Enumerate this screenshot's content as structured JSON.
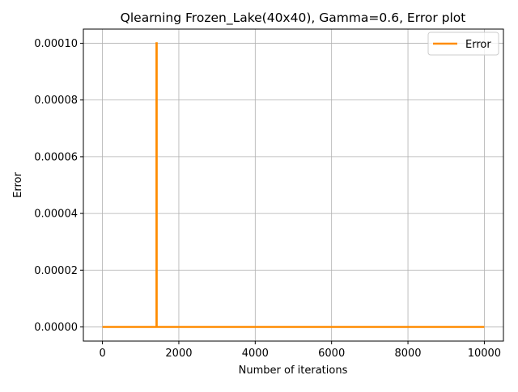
{
  "chart_data": {
    "type": "line",
    "title": "Qlearning Frozen_Lake(40x40),  Gamma=0.6, Error plot",
    "xlabel": "Number of iterations",
    "ylabel": "Error",
    "xlim": [
      -500,
      10500
    ],
    "ylim": [
      -5e-06,
      0.000105
    ],
    "xticks": [
      0,
      2000,
      4000,
      6000,
      8000,
      10000
    ],
    "xtick_labels": [
      "0",
      "2000",
      "4000",
      "6000",
      "8000",
      "10000"
    ],
    "yticks": [
      0,
      2e-05,
      4e-05,
      6e-05,
      8e-05,
      0.0001
    ],
    "ytick_labels": [
      "0.00000",
      "0.00002",
      "0.00004",
      "0.00006",
      "0.00008",
      "0.00010"
    ],
    "grid": true,
    "legend_position": "upper right",
    "series": [
      {
        "name": "Error",
        "color": "#ff8c00",
        "x": [
          0,
          1415,
          1415,
          1420,
          1420,
          10000
        ],
        "y": [
          0,
          0,
          0.0001,
          0.0001,
          0,
          0
        ]
      }
    ]
  }
}
